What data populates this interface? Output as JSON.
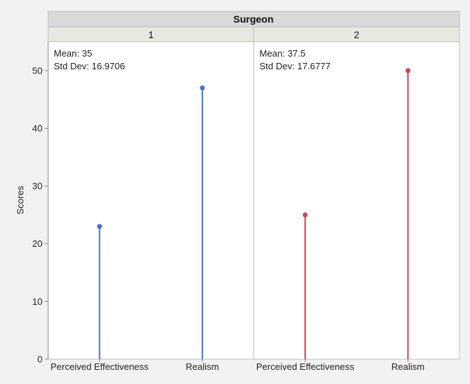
{
  "chart_data": {
    "type": "needle",
    "facet_title": "Surgeon",
    "ylabel": "Scores",
    "ylim": [
      0,
      55
    ],
    "yticks": [
      0,
      10,
      20,
      30,
      40,
      50
    ],
    "categories": [
      "Perceived Effectiveness",
      "Realism"
    ],
    "panels": [
      {
        "label": "1",
        "color": "#4a72d4",
        "values": [
          23,
          47
        ],
        "stats": [
          "Mean: 35",
          "Std Dev: 16.9706"
        ]
      },
      {
        "label": "2",
        "color": "#d0434f",
        "values": [
          25,
          50
        ],
        "stats": [
          "Mean: 37.5",
          "Std Dev: 17.6777"
        ]
      }
    ],
    "grid": false
  },
  "colors": {
    "header_bg": "#d9d9d9",
    "subheader_bg": "#e8e8e3",
    "background": "#f2f2f2",
    "plot_bg": "#ffffff"
  }
}
